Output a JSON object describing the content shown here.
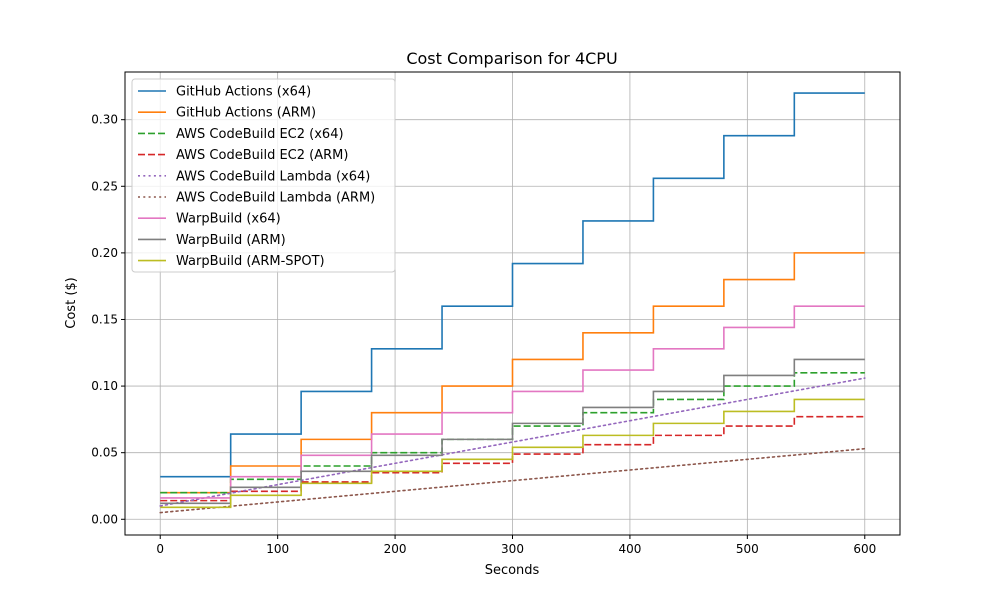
{
  "chart_data": {
    "type": "line",
    "title": "Cost Comparison for 4CPU",
    "xlabel": "Seconds",
    "ylabel": "Cost ($)",
    "xlim": [
      -30,
      630
    ],
    "ylim": [
      -0.0118,
      0.3358
    ],
    "xticks": [
      0,
      100,
      200,
      300,
      400,
      500,
      600
    ],
    "xtick_labels": [
      "0",
      "100",
      "200",
      "300",
      "400",
      "500",
      "600"
    ],
    "yticks": [
      0,
      0.05,
      0.1,
      0.15,
      0.2,
      0.25,
      0.3
    ],
    "ytick_labels": [
      "0.00",
      "0.05",
      "0.10",
      "0.15",
      "0.20",
      "0.25",
      "0.30"
    ],
    "grid": true,
    "legend": "top-left",
    "step_boundaries": [
      0,
      60,
      120,
      180,
      240,
      300,
      360,
      420,
      480,
      540,
      600
    ],
    "series": [
      {
        "name": "GitHub Actions (x64)",
        "kind": "step",
        "color": "#1f77b4",
        "dash": "solid",
        "values": [
          0.032,
          0.064,
          0.096,
          0.128,
          0.16,
          0.192,
          0.224,
          0.256,
          0.288,
          0.32
        ]
      },
      {
        "name": "GitHub Actions (ARM)",
        "kind": "step",
        "color": "#ff7f0e",
        "dash": "solid",
        "values": [
          0.02,
          0.04,
          0.06,
          0.08,
          0.1,
          0.12,
          0.14,
          0.16,
          0.18,
          0.2
        ]
      },
      {
        "name": "AWS CodeBuild EC2 (x64)",
        "kind": "step",
        "color": "#2ca02c",
        "dash": "dashed",
        "values": [
          0.02,
          0.03,
          0.04,
          0.05,
          0.06,
          0.07,
          0.08,
          0.09,
          0.1,
          0.11
        ]
      },
      {
        "name": "AWS CodeBuild EC2 (ARM)",
        "kind": "step",
        "color": "#d62728",
        "dash": "dashed",
        "values": [
          0.014,
          0.021,
          0.028,
          0.035,
          0.042,
          0.049,
          0.056,
          0.063,
          0.07,
          0.077
        ]
      },
      {
        "name": "AWS CodeBuild Lambda (x64)",
        "kind": "line",
        "color": "#9467bd",
        "dash": "dotted",
        "x": [
          0,
          600
        ],
        "y": [
          0.01,
          0.106
        ]
      },
      {
        "name": "AWS CodeBuild Lambda (ARM)",
        "kind": "line",
        "color": "#8c564b",
        "dash": "dotted",
        "x": [
          0,
          600
        ],
        "y": [
          0.005,
          0.053
        ]
      },
      {
        "name": "WarpBuild (x64)",
        "kind": "step",
        "color": "#e377c2",
        "dash": "solid",
        "values": [
          0.016,
          0.032,
          0.048,
          0.064,
          0.08,
          0.096,
          0.112,
          0.128,
          0.144,
          0.16
        ]
      },
      {
        "name": "WarpBuild (ARM)",
        "kind": "step",
        "color": "#7f7f7f",
        "dash": "solid",
        "values": [
          0.012,
          0.024,
          0.036,
          0.048,
          0.06,
          0.072,
          0.084,
          0.096,
          0.108,
          0.12
        ]
      },
      {
        "name": "WarpBuild (ARM-SPOT)",
        "kind": "step",
        "color": "#bcbd22",
        "dash": "solid",
        "values": [
          0.009,
          0.018,
          0.027,
          0.036,
          0.045,
          0.054,
          0.063,
          0.072,
          0.081,
          0.09
        ]
      }
    ]
  }
}
